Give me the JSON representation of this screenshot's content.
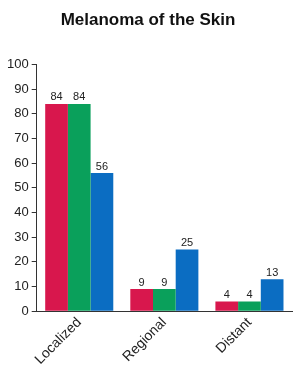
{
  "chart_data": {
    "type": "bar",
    "title": "Melanoma of the Skin",
    "categories": [
      "Localized",
      "Regional",
      "Distant"
    ],
    "series": [
      {
        "color": "#d8174d",
        "values": [
          84,
          9,
          4
        ]
      },
      {
        "color": "#0aa05b",
        "values": [
          84,
          9,
          4
        ]
      },
      {
        "color": "#0b6dc2",
        "values": [
          56,
          25,
          13
        ]
      }
    ],
    "ylim": [
      0,
      100
    ],
    "yticks": [
      0,
      10,
      20,
      30,
      40,
      50,
      60,
      70,
      80,
      90,
      100
    ],
    "grid": false,
    "data_labels": true
  }
}
